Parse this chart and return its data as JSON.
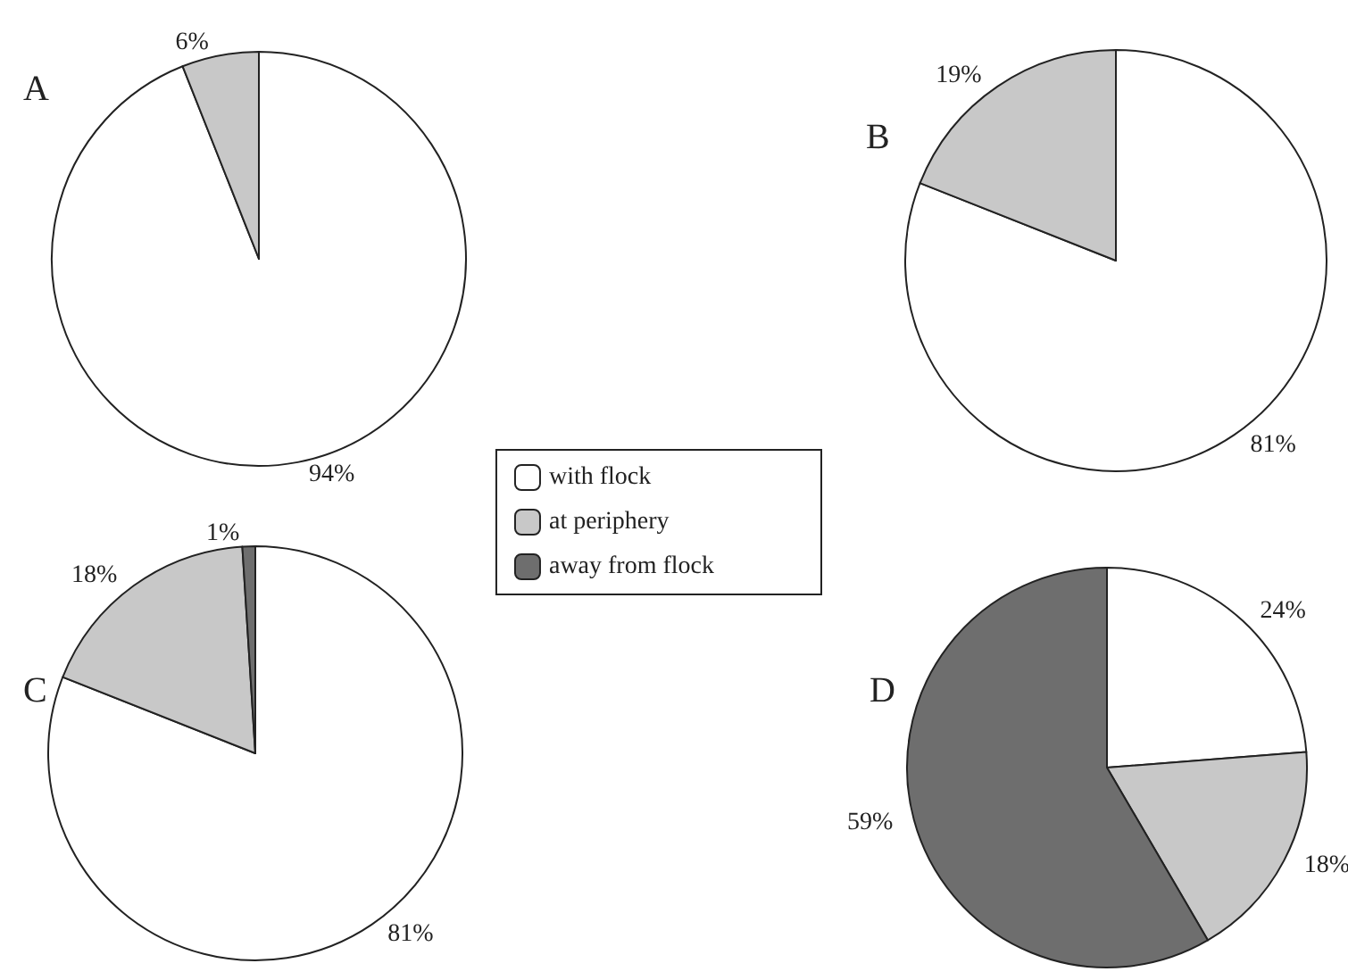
{
  "chart_data": [
    {
      "type": "pie",
      "title": "A",
      "categories": [
        "with flock",
        "at periphery",
        "away from flock"
      ],
      "values": [
        94,
        6,
        0
      ],
      "colors": [
        "#ffffff",
        "#c8c8c8",
        "#6e6e6e"
      ],
      "value_labels": [
        "94%",
        "6%",
        null
      ],
      "legend": "bottom right"
    },
    {
      "type": "pie",
      "title": "B",
      "categories": [
        null,
        null,
        null
      ],
      "values": [
        81,
        19,
        0
      ],
      "colors": [
        "#ffffff",
        "#c8c8c8",
        "#6e6e6e"
      ],
      "value_labels": [
        "81%",
        "19%",
        null
      ]
    },
    {
      "type": "pie",
      "title": "C",
      "categories": [
        null,
        null,
        null
      ],
      "values": [
        81,
        18,
        1
      ],
      "colors": [
        "#ffffff",
        "#c8c8c8",
        "#6e6e6e"
      ],
      "value_labels": [
        "81%",
        "18%",
        "1%"
      ]
    },
    {
      "type": "pie",
      "title": "D",
      "categories": [
        null,
        null,
        null
      ],
      "values": [
        24,
        18,
        59
      ],
      "colors": [
        "#ffffff",
        "#c8c8c8",
        "#6e6e6e"
      ],
      "value_labels": [
        "24%",
        "18%",
        "59%"
      ]
    }
  ]
}
